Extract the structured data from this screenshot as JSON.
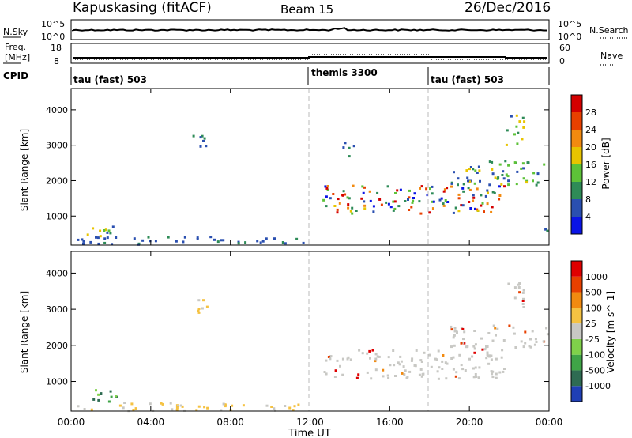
{
  "header": {
    "radar": "Kapuskasing (fitACF)",
    "beam": "Beam 15",
    "date": "26/Dec/2016"
  },
  "noise_panel": {
    "left_label": "N.Sky",
    "right_label": "N.Search",
    "left_ticks": [
      "10^5",
      "10^0"
    ],
    "right_ticks": [
      "10^5",
      "10^0"
    ]
  },
  "freq_panel": {
    "left_label_line1": "Freq.",
    "left_label_line2": "[MHz]",
    "left_ticks": [
      "18",
      "8"
    ],
    "right_label": "Nave",
    "right_ticks": [
      "60",
      "0"
    ]
  },
  "cpid_panel": {
    "label": "CPID",
    "segments": [
      {
        "name": "tau (fast) 503",
        "start_hour": 0
      },
      {
        "name": "themis 3300",
        "start_hour": 12
      },
      {
        "name": "tau (fast) 503",
        "start_hour": 18
      }
    ]
  },
  "x_axis": {
    "label": "Time UT",
    "ticks": [
      "00:00",
      "04:00",
      "08:00",
      "12:00",
      "16:00",
      "20:00",
      "00:00"
    ]
  },
  "chart_data": [
    {
      "type": "heatmap",
      "parameter": "Power",
      "colorbar_label": "Power [dB]",
      "ylabel": "Slant Range [km]",
      "xlim": [
        0,
        24
      ],
      "ylim": [
        180,
        4600
      ],
      "yticks": [
        1000,
        2000,
        3000,
        4000
      ],
      "colorbar_ticks": [
        4,
        8,
        12,
        16,
        20,
        24,
        28
      ],
      "colorbar_colors": [
        "#0a14e6",
        "#2a4fb0",
        "#2e8b57",
        "#5dc238",
        "#e8c400",
        "#f28a10",
        "#e84000",
        "#d40000"
      ],
      "echo_regions": [
        {
          "t": [
            0.2,
            11.8
          ],
          "r": [
            220,
            450
          ],
          "level": "low"
        },
        {
          "t": [
            0.7,
            2.4
          ],
          "r": [
            450,
            800
          ],
          "level": "mid"
        },
        {
          "t": [
            6.0,
            6.9
          ],
          "r": [
            2850,
            3300
          ],
          "level": "low"
        },
        {
          "t": [
            13.6,
            14.3
          ],
          "r": [
            2700,
            3100
          ],
          "level": "low"
        },
        {
          "t": [
            12.6,
            21.8
          ],
          "r": [
            1100,
            1900
          ],
          "level": "high"
        },
        {
          "t": [
            19.0,
            23.9
          ],
          "r": [
            1900,
            2600
          ],
          "level": "mid"
        },
        {
          "t": [
            21.8,
            22.7
          ],
          "r": [
            3000,
            3900
          ],
          "level": "mid"
        },
        {
          "t": [
            23.6,
            24.0
          ],
          "r": [
            600,
            900
          ],
          "level": "low"
        }
      ]
    },
    {
      "type": "heatmap",
      "parameter": "Velocity",
      "colorbar_label": "Velocity [m s^-1]",
      "ylabel": "Slant Range [km]",
      "xlim": [
        0,
        24
      ],
      "ylim": [
        180,
        4600
      ],
      "yticks": [
        1000,
        2000,
        3000,
        4000
      ],
      "colorbar_ticks": [
        "1000",
        "500",
        "100",
        "25",
        "-25",
        "-100",
        "-500",
        "-1000"
      ],
      "colorbar_colors": [
        "#1f3fb5",
        "#2e6b52",
        "#3fa447",
        "#7fd14a",
        "#c8c8c4",
        "#f5c242",
        "#f28a10",
        "#e84000",
        "#e00000"
      ],
      "echo_regions": [
        {
          "t": [
            0.2,
            11.8
          ],
          "r": [
            220,
            450
          ],
          "level": "low"
        },
        {
          "t": [
            0.7,
            2.4
          ],
          "r": [
            450,
            800
          ],
          "level": "mid"
        },
        {
          "t": [
            6.0,
            6.9
          ],
          "r": [
            2850,
            3300
          ],
          "level": "low"
        },
        {
          "t": [
            12.6,
            21.8
          ],
          "r": [
            1100,
            1900
          ],
          "level": "gs"
        },
        {
          "t": [
            19.0,
            23.9
          ],
          "r": [
            1900,
            2600
          ],
          "level": "gs"
        },
        {
          "t": [
            21.8,
            22.7
          ],
          "r": [
            3000,
            3900
          ],
          "level": "gs"
        }
      ]
    }
  ]
}
